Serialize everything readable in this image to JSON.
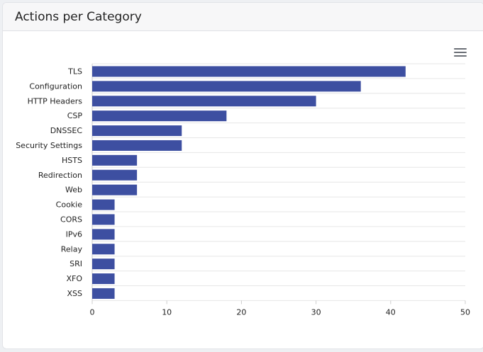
{
  "card": {
    "title": "Actions per Category",
    "menu_icon": "hamburger-menu-icon"
  },
  "chart_data": {
    "type": "bar",
    "orientation": "horizontal",
    "title": "",
    "xlabel": "",
    "ylabel": "",
    "categories": [
      "TLS",
      "Configuration",
      "HTTP Headers",
      "CSP",
      "DNSSEC",
      "Security Settings",
      "HSTS",
      "Redirection",
      "Web",
      "Cookie",
      "CORS",
      "IPv6",
      "Relay",
      "SRI",
      "XFO",
      "XSS"
    ],
    "values": [
      42,
      36,
      30,
      18,
      12,
      12,
      6,
      6,
      6,
      3,
      3,
      3,
      3,
      3,
      3,
      3
    ],
    "xlim": [
      0,
      50
    ],
    "xticks": [
      0,
      10,
      20,
      30,
      40,
      50
    ],
    "grid": true,
    "bar_color": "#3d4fa1"
  }
}
